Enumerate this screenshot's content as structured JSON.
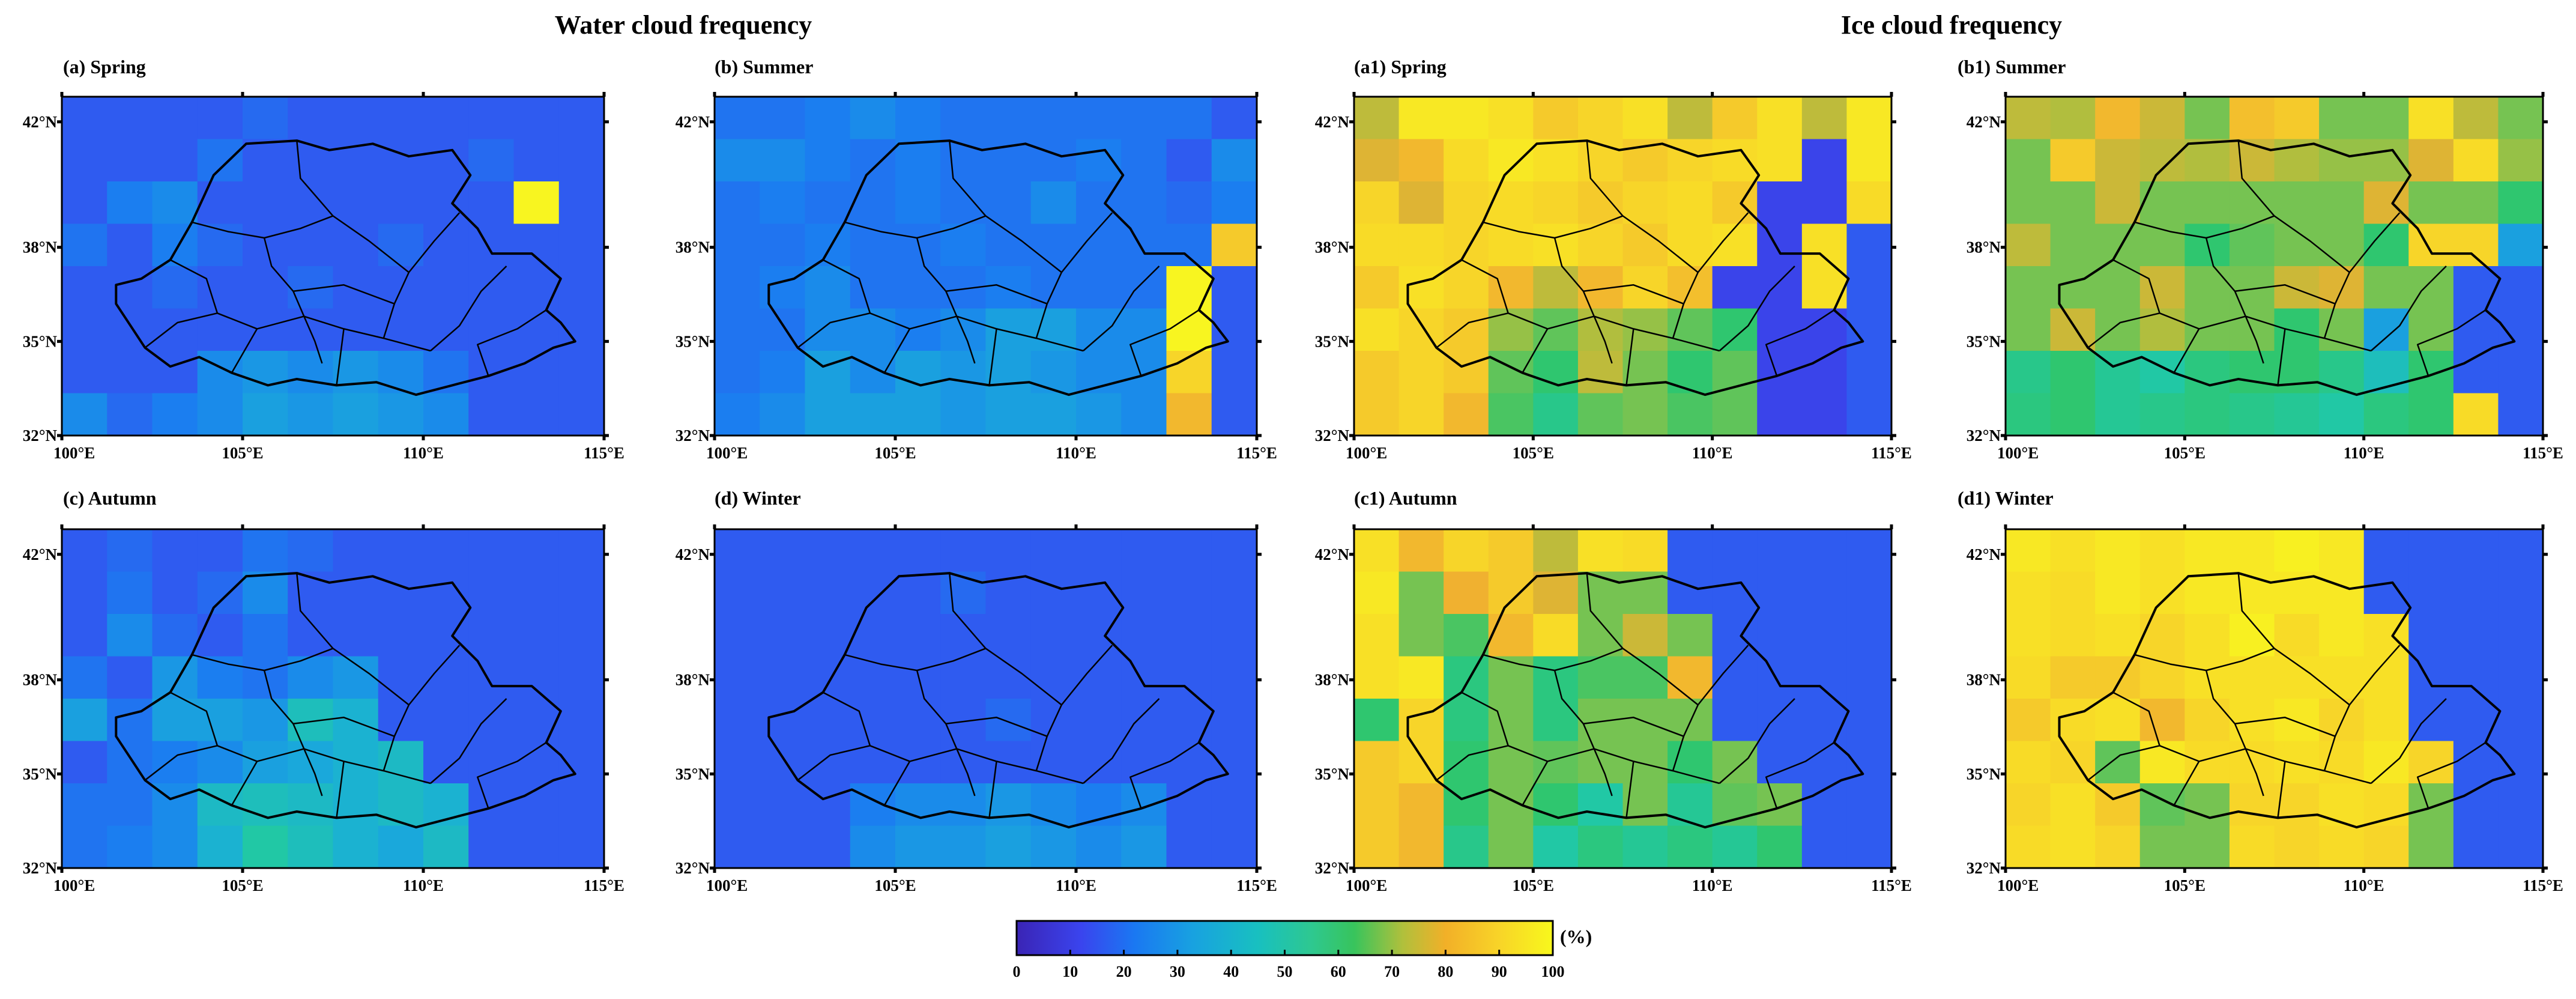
{
  "titles": {
    "water": "Water cloud frequency",
    "ice": "Ice cloud frequency"
  },
  "panels": [
    {
      "id": "a",
      "label": "(a) Spring"
    },
    {
      "id": "b",
      "label": "(b) Summer"
    },
    {
      "id": "a1",
      "label": "(a1) Spring"
    },
    {
      "id": "b1",
      "label": "(b1) Summer"
    },
    {
      "id": "c",
      "label": "(c) Autumn"
    },
    {
      "id": "d",
      "label": "(d) Winter"
    },
    {
      "id": "c1",
      "label": "(c1) Autumn"
    },
    {
      "id": "d1",
      "label": "(d1) Winter"
    }
  ],
  "axes": {
    "lon_range": [
      100,
      115
    ],
    "lat_range": [
      32,
      42.8
    ],
    "lon_ticks": [
      "100°E",
      "105°E",
      "110°E",
      "115°E"
    ],
    "lon_tick_values": [
      100,
      105,
      110,
      115
    ],
    "lat_ticks": [
      "32°N",
      "35°N",
      "38°N",
      "42°N"
    ],
    "lat_tick_values": [
      32,
      35,
      38,
      42
    ]
  },
  "colorbar": {
    "unit": "(%)",
    "ticks": [
      "0",
      "10",
      "20",
      "30",
      "40",
      "50",
      "60",
      "70",
      "80",
      "90",
      "100"
    ],
    "range": [
      0,
      100
    ],
    "colors": [
      "#3a24b5",
      "#3a48f0",
      "#1a7ff0",
      "#1aaed8",
      "#20c8a8",
      "#30c66c",
      "#a8c040",
      "#f0b030",
      "#f8d828",
      "#f8f520"
    ]
  },
  "grid": {
    "columns": 12,
    "rows": 8,
    "cells_percent": {
      "a": [
        [
          15,
          15,
          15,
          15,
          18,
          15,
          15,
          15,
          15,
          15,
          15,
          15
        ],
        [
          15,
          15,
          15,
          20,
          15,
          15,
          15,
          15,
          15,
          18,
          15,
          15
        ],
        [
          15,
          22,
          25,
          15,
          15,
          15,
          15,
          15,
          15,
          15,
          100,
          15
        ],
        [
          20,
          15,
          22,
          18,
          15,
          15,
          15,
          18,
          15,
          15,
          15,
          15
        ],
        [
          15,
          15,
          18,
          15,
          15,
          18,
          15,
          15,
          15,
          15,
          15,
          15
        ],
        [
          15,
          15,
          15,
          15,
          15,
          15,
          15,
          15,
          15,
          15,
          15,
          15
        ],
        [
          15,
          15,
          15,
          25,
          28,
          25,
          28,
          25,
          20,
          15,
          15,
          15
        ],
        [
          25,
          18,
          22,
          25,
          30,
          28,
          30,
          28,
          25,
          15,
          15,
          15
        ]
      ],
      "b": [
        [
          20,
          20,
          22,
          25,
          22,
          20,
          20,
          20,
          20,
          20,
          20,
          15
        ],
        [
          25,
          25,
          22,
          20,
          22,
          20,
          20,
          20,
          22,
          20,
          15,
          25
        ],
        [
          20,
          22,
          20,
          20,
          22,
          20,
          20,
          25,
          20,
          20,
          18,
          22
        ],
        [
          20,
          20,
          22,
          20,
          20,
          22,
          20,
          20,
          20,
          20,
          20,
          85
        ],
        [
          20,
          22,
          25,
          20,
          20,
          20,
          22,
          20,
          20,
          20,
          100,
          15
        ],
        [
          20,
          20,
          25,
          25,
          22,
          25,
          30,
          30,
          25,
          25,
          100,
          15
        ],
        [
          20,
          22,
          30,
          25,
          30,
          28,
          30,
          28,
          25,
          25,
          88,
          15
        ],
        [
          22,
          25,
          30,
          30,
          30,
          28,
          30,
          30,
          28,
          25,
          80,
          15
        ]
      ],
      "a1": [
        [
          70,
          95,
          95,
          92,
          85,
          88,
          92,
          70,
          85,
          92,
          70,
          95
        ],
        [
          75,
          80,
          90,
          95,
          92,
          88,
          85,
          88,
          90,
          92,
          10,
          95
        ],
        [
          88,
          75,
          88,
          90,
          88,
          85,
          88,
          90,
          85,
          10,
          10,
          90
        ],
        [
          90,
          90,
          88,
          90,
          92,
          88,
          85,
          90,
          92,
          10,
          92,
          15
        ],
        [
          85,
          92,
          88,
          80,
          70,
          80,
          88,
          82,
          10,
          10,
          92,
          15
        ],
        [
          92,
          88,
          85,
          65,
          60,
          68,
          65,
          60,
          55,
          10,
          10,
          15
        ],
        [
          85,
          88,
          85,
          60,
          55,
          70,
          62,
          55,
          60,
          10,
          10,
          15
        ],
        [
          85,
          88,
          80,
          58,
          50,
          60,
          62,
          58,
          60,
          10,
          10,
          15
        ]
      ],
      "b1": [
        [
          70,
          68,
          80,
          72,
          62,
          82,
          85,
          62,
          62,
          92,
          70,
          62
        ],
        [
          62,
          85,
          72,
          70,
          68,
          72,
          68,
          65,
          65,
          75,
          90,
          65
        ],
        [
          62,
          62,
          72,
          62,
          62,
          62,
          62,
          62,
          75,
          62,
          62,
          55
        ],
        [
          70,
          62,
          62,
          62,
          55,
          60,
          62,
          62,
          55,
          88,
          88,
          30
        ],
        [
          62,
          62,
          62,
          72,
          62,
          62,
          72,
          75,
          62,
          62,
          15,
          15
        ],
        [
          62,
          72,
          62,
          68,
          62,
          62,
          55,
          62,
          30,
          62,
          15,
          15
        ],
        [
          50,
          55,
          48,
          45,
          52,
          55,
          55,
          50,
          40,
          55,
          15,
          15
        ],
        [
          52,
          55,
          48,
          50,
          52,
          50,
          48,
          45,
          52,
          55,
          90,
          15
        ]
      ],
      "c1": [
        [
          92,
          80,
          88,
          85,
          70,
          92,
          90,
          15,
          15,
          15,
          15,
          15
        ],
        [
          95,
          62,
          78,
          85,
          75,
          62,
          62,
          15,
          15,
          15,
          15,
          15
        ],
        [
          92,
          62,
          58,
          80,
          90,
          62,
          72,
          62,
          15,
          15,
          15,
          15
        ],
        [
          92,
          95,
          52,
          62,
          52,
          58,
          58,
          80,
          15,
          15,
          15,
          15
        ],
        [
          55,
          88,
          52,
          62,
          52,
          62,
          62,
          62,
          15,
          15,
          15,
          15
        ],
        [
          85,
          88,
          55,
          62,
          60,
          62,
          62,
          55,
          62,
          15,
          15,
          15
        ],
        [
          85,
          80,
          55,
          62,
          55,
          45,
          62,
          48,
          60,
          62,
          15,
          15
        ],
        [
          85,
          80,
          50,
          62,
          45,
          52,
          48,
          52,
          48,
          55,
          15,
          15
        ]
      ],
      "d1": [
        [
          95,
          92,
          95,
          92,
          95,
          95,
          98,
          95,
          15,
          15,
          15,
          15
        ],
        [
          92,
          90,
          95,
          92,
          95,
          95,
          95,
          95,
          15,
          15,
          15,
          15
        ],
        [
          92,
          90,
          92,
          88,
          92,
          98,
          90,
          95,
          92,
          15,
          15,
          15
        ],
        [
          90,
          85,
          85,
          88,
          92,
          92,
          92,
          92,
          92,
          15,
          15,
          15
        ],
        [
          85,
          90,
          92,
          80,
          88,
          92,
          95,
          88,
          92,
          15,
          15,
          15
        ],
        [
          90,
          88,
          60,
          95,
          90,
          90,
          92,
          90,
          95,
          88,
          15,
          15
        ],
        [
          88,
          92,
          85,
          60,
          62,
          88,
          88,
          92,
          90,
          62,
          15,
          15
        ],
        [
          90,
          92,
          88,
          62,
          62,
          90,
          88,
          90,
          88,
          62,
          15,
          15
        ]
      ],
      "c": [
        [
          15,
          18,
          15,
          15,
          20,
          18,
          15,
          15,
          15,
          15,
          15,
          15
        ],
        [
          15,
          20,
          15,
          18,
          25,
          15,
          15,
          15,
          15,
          15,
          15,
          15
        ],
        [
          15,
          25,
          18,
          15,
          20,
          15,
          15,
          15,
          15,
          15,
          15,
          15
        ],
        [
          20,
          15,
          28,
          22,
          20,
          25,
          28,
          15,
          15,
          15,
          15,
          15
        ],
        [
          30,
          20,
          30,
          30,
          28,
          40,
          35,
          15,
          15,
          15,
          15,
          15
        ],
        [
          15,
          20,
          22,
          25,
          30,
          32,
          35,
          38,
          15,
          15,
          15,
          15
        ],
        [
          20,
          20,
          25,
          38,
          40,
          38,
          35,
          38,
          35,
          15,
          15,
          15
        ],
        [
          20,
          22,
          25,
          35,
          45,
          40,
          35,
          32,
          38,
          15,
          15,
          15
        ]
      ],
      "d": [
        [
          15,
          15,
          15,
          15,
          15,
          15,
          15,
          15,
          15,
          15,
          15,
          15
        ],
        [
          15,
          15,
          15,
          15,
          15,
          18,
          15,
          15,
          15,
          15,
          15,
          15
        ],
        [
          15,
          15,
          15,
          15,
          15,
          15,
          15,
          15,
          15,
          15,
          15,
          15
        ],
        [
          15,
          15,
          15,
          15,
          15,
          15,
          15,
          15,
          15,
          15,
          15,
          15
        ],
        [
          15,
          15,
          15,
          15,
          15,
          15,
          18,
          15,
          15,
          15,
          15,
          15
        ],
        [
          15,
          15,
          15,
          15,
          15,
          15,
          15,
          15,
          15,
          15,
          15,
          15
        ],
        [
          15,
          15,
          15,
          22,
          25,
          25,
          28,
          25,
          22,
          25,
          15,
          15
        ],
        [
          15,
          15,
          15,
          25,
          28,
          28,
          30,
          28,
          25,
          28,
          15,
          15
        ]
      ]
    }
  }
}
